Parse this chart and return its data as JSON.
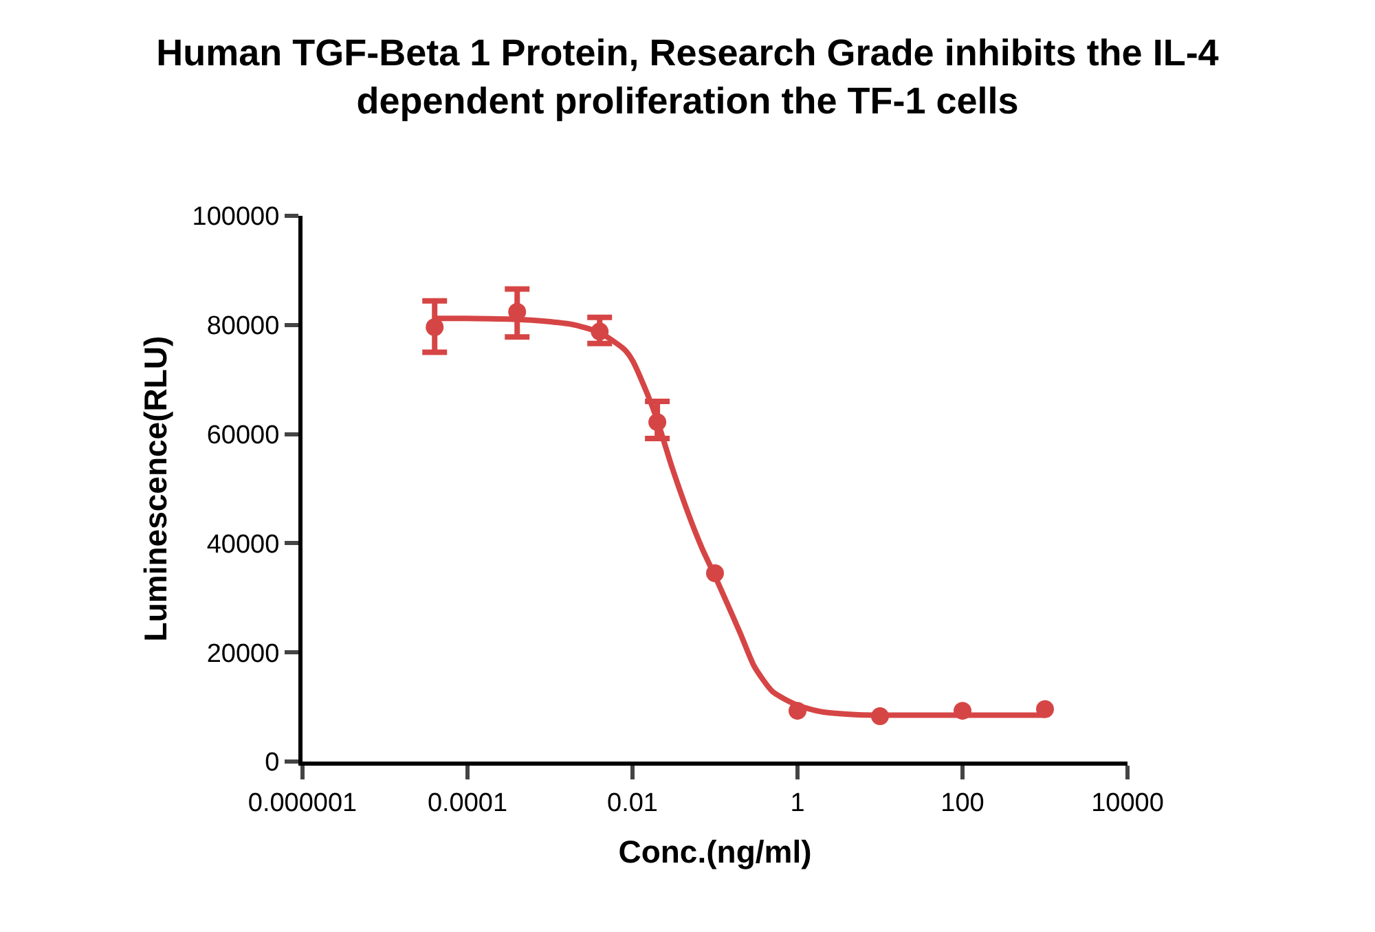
{
  "chart_data": {
    "type": "scatter",
    "title": "Human TGF-Beta 1 Protein, Research Grade inhibits the IL-4 dependent proliferation the TF-1 cells",
    "xlabel": "Conc.(ng/ml)",
    "ylabel": "Luminescence(RLU)",
    "log": "x",
    "grid": false,
    "marker": "circle",
    "xlim": [
      1e-06,
      10000
    ],
    "xticks": [
      {
        "value": 1e-06,
        "label": "0.000001"
      },
      {
        "value": 0.0001,
        "label": "0.0001"
      },
      {
        "value": 0.01,
        "label": "0.01"
      },
      1,
      100,
      10000
    ],
    "ylim": [
      0,
      100000
    ],
    "yticks": [
      0,
      20000,
      40000,
      60000,
      80000,
      100000
    ],
    "x": [
      4e-05,
      0.0004,
      0.004,
      0.02,
      0.1,
      1,
      10,
      100,
      1000
    ],
    "series": [
      {
        "color": "#d64545",
        "values": [
          79600,
          82400,
          78800,
          62200,
          34500,
          9300,
          8300,
          9300,
          9600
        ],
        "errors": [
          [
            75000,
            84400
          ],
          [
            77800,
            86600
          ],
          [
            76600,
            81400
          ],
          [
            59200,
            66000
          ],
          null,
          null,
          null,
          null,
          null
        ]
      },
      {
        "type": "line",
        "color": "#d64545",
        "marker": "none",
        "line_style": "solid",
        "x": [
          4e-05,
          0.0001,
          0.0004,
          0.001,
          0.002,
          0.004,
          0.008,
          0.01,
          0.015,
          0.02,
          0.03,
          0.05,
          0.07,
          0.1,
          0.2,
          0.3,
          0.5,
          1,
          2,
          5,
          10,
          100,
          1000
        ],
        "values": [
          81200,
          81200,
          81000,
          80600,
          80000,
          78600,
          75500,
          73500,
          67500,
          62500,
          54000,
          44500,
          39000,
          34000,
          23700,
          17400,
          12800,
          10300,
          9100,
          8600,
          8500,
          8500,
          8500
        ]
      }
    ]
  }
}
